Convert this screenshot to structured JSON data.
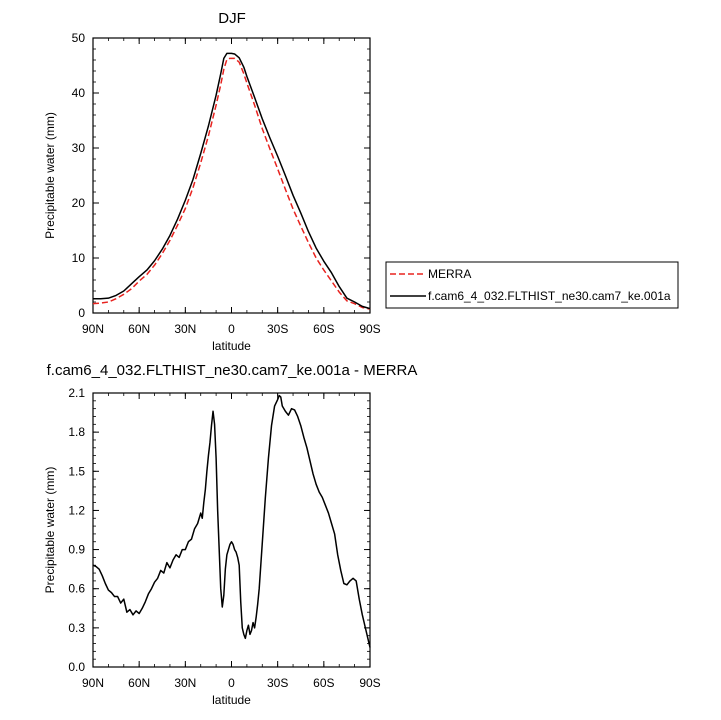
{
  "chart_data": [
    {
      "type": "line",
      "title": "DJF",
      "xlabel": "latitude",
      "ylabel": "Precipitable water (mm)",
      "xlim": [
        90,
        -90
      ],
      "ylim": [
        0,
        50
      ],
      "x_ticks": [
        90,
        60,
        30,
        0,
        -30,
        -60,
        -90
      ],
      "x_tick_labels": [
        "90N",
        "60N",
        "30N",
        "0",
        "30S",
        "60S",
        "90S"
      ],
      "y_ticks": [
        0,
        10,
        20,
        30,
        40,
        50
      ],
      "y_tick_labels": [
        "0",
        "10",
        "20",
        "30",
        "40",
        "50"
      ],
      "legend_position": "right",
      "series": [
        {
          "name": "MERRA",
          "color": "#e8231f",
          "dash": "dashed",
          "x": [
            90,
            85,
            80,
            75,
            70,
            65,
            60,
            55,
            50,
            45,
            40,
            35,
            30,
            25,
            20,
            15,
            10,
            7,
            5,
            3,
            1,
            0,
            -2,
            -5,
            -8,
            -10,
            -15,
            -20,
            -25,
            -30,
            -35,
            -40,
            -45,
            -50,
            -55,
            -60,
            -65,
            -70,
            -75,
            -80,
            -85,
            -90
          ],
          "y": [
            1.7,
            1.8,
            2.0,
            2.6,
            3.4,
            4.4,
            5.8,
            7.0,
            8.7,
            10.8,
            13.2,
            16.0,
            19.0,
            22.8,
            27.3,
            32.2,
            37.8,
            41.5,
            44.3,
            46.1,
            46.3,
            46.3,
            46.3,
            45.6,
            43.5,
            41.8,
            37.8,
            33.5,
            29.8,
            26.2,
            22.5,
            18.9,
            15.8,
            12.8,
            10.0,
            7.8,
            5.8,
            3.8,
            2.2,
            1.7,
            1.0,
            0.7
          ]
        },
        {
          "name": "f.cam6_4_032.FLTHIST_ne30.cam7_ke.001a",
          "color": "#000000",
          "dash": "solid",
          "x": [
            90,
            85,
            80,
            75,
            70,
            65,
            60,
            55,
            50,
            45,
            40,
            35,
            30,
            25,
            20,
            15,
            10,
            7,
            5,
            3,
            1,
            0,
            -2,
            -5,
            -8,
            -10,
            -15,
            -20,
            -25,
            -30,
            -35,
            -40,
            -45,
            -50,
            -55,
            -60,
            -65,
            -70,
            -75,
            -80,
            -85,
            -90
          ],
          "y": [
            2.6,
            2.6,
            2.7,
            3.2,
            4.0,
            5.3,
            6.6,
            7.8,
            9.5,
            11.6,
            14.1,
            17.1,
            20.5,
            24.3,
            29.0,
            34.0,
            39.6,
            43.5,
            46.3,
            47.2,
            47.2,
            47.2,
            47.1,
            46.4,
            44.7,
            43.0,
            39.2,
            35.3,
            31.8,
            28.5,
            25.0,
            21.4,
            18.2,
            14.8,
            11.8,
            9.4,
            7.3,
            4.8,
            2.7,
            2.0,
            1.2,
            0.8
          ]
        }
      ]
    },
    {
      "type": "line",
      "title": "f.cam6_4_032.FLTHIST_ne30.cam7_ke.001a - MERRA",
      "xlabel": "latitude",
      "ylabel": "Precipitable water (mm)",
      "xlim": [
        90,
        -90
      ],
      "ylim": [
        0,
        2.1
      ],
      "x_ticks": [
        90,
        60,
        30,
        0,
        -30,
        -60,
        -90
      ],
      "x_tick_labels": [
        "90N",
        "60N",
        "30N",
        "0",
        "30S",
        "60S",
        "90S"
      ],
      "y_ticks": [
        0,
        0.3,
        0.6,
        0.9,
        1.2,
        1.5,
        1.8,
        2.1
      ],
      "y_tick_labels": [
        "0.0",
        "0.3",
        "0.6",
        "0.9",
        "1.2",
        "1.5",
        "1.8",
        "2.1"
      ],
      "series": [
        {
          "color": "#000000",
          "dash": "solid",
          "x": [
            90,
            88,
            86,
            84,
            82,
            80,
            78,
            76,
            74,
            72,
            70,
            68,
            66,
            64,
            62,
            60,
            58,
            56,
            54,
            52,
            50,
            48,
            46,
            44,
            42,
            40,
            38,
            36,
            34,
            32,
            30,
            28,
            26,
            24,
            22,
            20,
            19,
            18,
            17,
            16,
            15,
            14,
            13,
            12,
            11,
            10,
            9,
            8,
            7,
            6,
            5,
            4,
            3,
            2,
            1,
            0,
            -1,
            -2,
            -3,
            -4,
            -5,
            -6,
            -7,
            -8,
            -9,
            -10,
            -11,
            -12,
            -13,
            -14,
            -15,
            -16,
            -17,
            -18,
            -20,
            -22,
            -24,
            -26,
            -28,
            -30,
            -31,
            -32,
            -33,
            -34,
            -35,
            -37,
            -39,
            -41,
            -43,
            -45,
            -47,
            -49,
            -51,
            -53,
            -55,
            -57,
            -59,
            -61,
            -63,
            -65,
            -67,
            -69,
            -71,
            -73,
            -75,
            -77,
            -79,
            -81,
            -83,
            -85,
            -87,
            -89,
            -90
          ],
          "y": [
            0.78,
            0.77,
            0.75,
            0.7,
            0.64,
            0.59,
            0.57,
            0.54,
            0.54,
            0.49,
            0.52,
            0.42,
            0.44,
            0.4,
            0.43,
            0.41,
            0.45,
            0.5,
            0.56,
            0.6,
            0.65,
            0.68,
            0.74,
            0.72,
            0.8,
            0.76,
            0.82,
            0.86,
            0.84,
            0.9,
            0.9,
            0.96,
            0.98,
            1.06,
            1.1,
            1.18,
            1.14,
            1.26,
            1.36,
            1.5,
            1.62,
            1.72,
            1.85,
            1.96,
            1.86,
            1.6,
            1.2,
            0.9,
            0.6,
            0.46,
            0.55,
            0.75,
            0.86,
            0.9,
            0.94,
            0.96,
            0.94,
            0.9,
            0.88,
            0.84,
            0.78,
            0.5,
            0.3,
            0.25,
            0.22,
            0.28,
            0.32,
            0.25,
            0.28,
            0.34,
            0.3,
            0.38,
            0.48,
            0.6,
            0.95,
            1.3,
            1.6,
            1.85,
            2.0,
            2.05,
            2.08,
            2.07,
            2.0,
            1.98,
            1.96,
            1.93,
            1.98,
            1.97,
            1.92,
            1.85,
            1.76,
            1.68,
            1.58,
            1.48,
            1.4,
            1.34,
            1.3,
            1.24,
            1.18,
            1.1,
            1.02,
            0.86,
            0.74,
            0.64,
            0.63,
            0.66,
            0.68,
            0.66,
            0.52,
            0.4,
            0.3,
            0.2,
            0.15
          ]
        }
      ]
    }
  ]
}
